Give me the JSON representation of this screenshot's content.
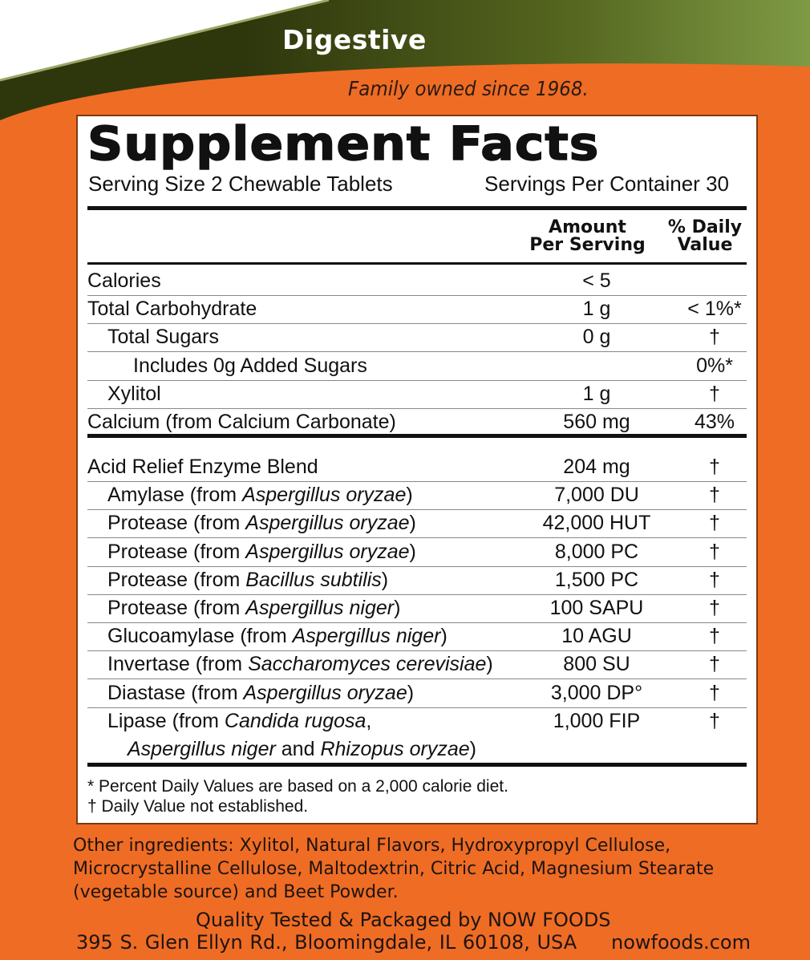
{
  "header": {
    "category": "Digestive",
    "tagline": "Family owned since 1968.",
    "colors": {
      "orange": "#ef6c25",
      "green_dark": "#2e360c",
      "green_light": "#7e9a45"
    }
  },
  "facts": {
    "title": "Supplement Facts",
    "serving_size": "Serving Size 2 Chewable Tablets",
    "servings_per_container": "Servings Per Container 30",
    "col_amount": [
      "Amount",
      "Per Serving"
    ],
    "col_dv": [
      "% Daily",
      "Value"
    ],
    "nutrients": [
      {
        "name": [
          {
            "t": "Calories"
          }
        ],
        "indent": 0,
        "amount": "< 5",
        "dv": ""
      },
      {
        "name": [
          {
            "t": "Total Carbohydrate"
          }
        ],
        "indent": 0,
        "amount": "1 g",
        "dv": "< 1%*"
      },
      {
        "name": [
          {
            "t": "Total Sugars"
          }
        ],
        "indent": 1,
        "amount": "0 g",
        "dv": "†"
      },
      {
        "name": [
          {
            "t": "Includes 0g Added Sugars"
          }
        ],
        "indent": 2,
        "amount": "",
        "dv": "0%*"
      },
      {
        "name": [
          {
            "t": "Xylitol"
          }
        ],
        "indent": 1,
        "amount": "1 g",
        "dv": "†"
      },
      {
        "name": [
          {
            "t": "Calcium (from Calcium Carbonate)"
          }
        ],
        "indent": 0,
        "amount": "560 mg",
        "dv": "43%"
      }
    ],
    "blend": [
      {
        "name": [
          {
            "t": "Acid Relief Enzyme Blend"
          }
        ],
        "indent": 0,
        "amount": "204 mg",
        "dv": "†"
      },
      {
        "name": [
          {
            "t": "Amylase (from "
          },
          {
            "t": "Aspergillus oryzae",
            "i": true
          },
          {
            "t": ")"
          }
        ],
        "indent": 1,
        "amount": "7,000 DU",
        "dv": "†"
      },
      {
        "name": [
          {
            "t": "Protease (from "
          },
          {
            "t": "Aspergillus oryzae",
            "i": true
          },
          {
            "t": ")"
          }
        ],
        "indent": 1,
        "amount": "42,000 HUT",
        "dv": "†"
      },
      {
        "name": [
          {
            "t": "Protease (from "
          },
          {
            "t": "Aspergillus oryzae",
            "i": true
          },
          {
            "t": ")"
          }
        ],
        "indent": 1,
        "amount": "8,000 PC",
        "dv": "†"
      },
      {
        "name": [
          {
            "t": "Protease (from "
          },
          {
            "t": "Bacillus subtilis",
            "i": true
          },
          {
            "t": ")"
          }
        ],
        "indent": 1,
        "amount": "1,500 PC",
        "dv": "†"
      },
      {
        "name": [
          {
            "t": "Protease (from "
          },
          {
            "t": "Aspergillus niger",
            "i": true
          },
          {
            "t": ")"
          }
        ],
        "indent": 1,
        "amount": "100 SAPU",
        "dv": "†"
      },
      {
        "name": [
          {
            "t": "Glucoamylase (from "
          },
          {
            "t": "Aspergillus niger",
            "i": true
          },
          {
            "t": ")"
          }
        ],
        "indent": 1,
        "amount": "10 AGU",
        "dv": "†"
      },
      {
        "name": [
          {
            "t": "Invertase (from "
          },
          {
            "t": "Saccharomyces cerevisiae",
            "i": true
          },
          {
            "t": ")"
          }
        ],
        "indent": 1,
        "amount": "800 SU",
        "dv": "†"
      },
      {
        "name": [
          {
            "t": "Diastase (from "
          },
          {
            "t": "Aspergillus oryzae",
            "i": true
          },
          {
            "t": ")"
          }
        ],
        "indent": 1,
        "amount": "3,000 DP°",
        "dv": "†"
      },
      {
        "name": [
          {
            "t": "Lipase (from "
          },
          {
            "t": "Candida rugosa",
            "i": true
          },
          {
            "t": ","
          }
        ],
        "line2": [
          {
            "t": "Aspergillus niger",
            "i": true
          },
          {
            "t": " and "
          },
          {
            "t": "Rhizopus oryzae",
            "i": true
          },
          {
            "t": ")"
          }
        ],
        "indent": 1,
        "amount": "1,000 FIP",
        "dv": "†"
      }
    ],
    "footnote_1": "* Percent Daily Values are based on a 2,000 calorie diet.",
    "footnote_2": "† Daily Value not established."
  },
  "other_ingredients": "Other ingredients: Xylitol, Natural Flavors, Hydroxypropyl Cellulose, Microcrystalline Cellulose, Maltodextrin, Citric Acid, Magnesium Stearate (vegetable source) and Beet Powder.",
  "footer": {
    "quality": "Quality Tested & Packaged by NOW FOODS",
    "address": "395 S. Glen Ellyn Rd., Bloomingdale, IL 60108, USA",
    "website": "nowfoods.com"
  }
}
